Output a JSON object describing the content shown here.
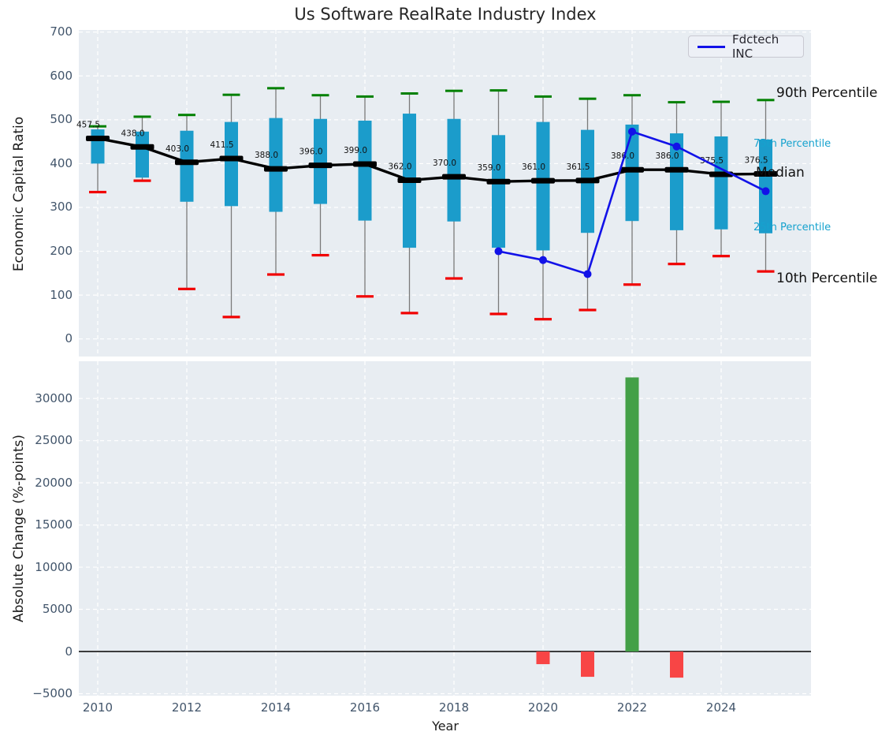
{
  "title": "Us Software RealRate Industry Index",
  "legend": {
    "label": "Fdctech INC",
    "position": "upper right",
    "line_color": "#1212e8"
  },
  "annotations": {
    "p90": "90th Percentile",
    "p75": "75th Percentile",
    "median": "Median",
    "p25": "25th Percentile",
    "p10": "10th Percentile"
  },
  "chart_data": [
    {
      "type": "boxplot-percentiles",
      "title": "Us Software RealRate Industry Index",
      "ylabel": "Economic Capital Ratio",
      "ylim": [
        -40,
        706
      ],
      "yticks": [
        0,
        100,
        200,
        300,
        400,
        500,
        600,
        700
      ],
      "grid": true,
      "years": [
        2010,
        2011,
        2012,
        2013,
        2014,
        2015,
        2016,
        2017,
        2018,
        2019,
        2020,
        2021,
        2022,
        2023,
        2024,
        2025
      ],
      "p90": [
        485,
        507,
        511,
        557,
        572,
        556,
        553,
        560,
        566,
        567,
        553,
        548,
        556,
        540,
        541,
        545
      ],
      "p75": [
        478,
        473,
        475,
        495,
        504,
        502,
        498,
        514,
        502,
        465,
        495,
        477,
        489,
        469,
        462,
        455
      ],
      "median": [
        457.5,
        438.0,
        403.0,
        411.5,
        388.0,
        396.0,
        399.0,
        362.0,
        370.0,
        359.0,
        361.0,
        361.5,
        386.0,
        386.0,
        375.5,
        376.5
      ],
      "p25": [
        400,
        368,
        313,
        303,
        290,
        308,
        270,
        208,
        268,
        208,
        202,
        242,
        269,
        248,
        250,
        241
      ],
      "p10": [
        335,
        361,
        114,
        50,
        147,
        191,
        97,
        59,
        138,
        57,
        45,
        66,
        124,
        171,
        189,
        154
      ],
      "median_labels": [
        "457.5",
        "438.0",
        "403.0",
        "411.5",
        "388.0",
        "396.0",
        "399.0",
        "362.0",
        "370.0",
        "359.0",
        "361.0",
        "361.5",
        "386.0",
        "386.0",
        "375.5",
        "376.5"
      ],
      "company": {
        "name": "Fdctech INC",
        "x": [
          2019,
          2020,
          2021,
          2022,
          2023,
          2025
        ],
        "y": [
          200,
          180,
          148,
          473,
          439,
          337
        ]
      },
      "colors": {
        "box": "#1b9ccb",
        "whisker": "#7a7a7a",
        "p90_cap": "#008000",
        "p10_cap": "#f10000",
        "median": "#000000",
        "company": "#1212e8",
        "plot_bg": "#e8edf2",
        "grid": "#ffffff"
      }
    },
    {
      "type": "bar",
      "ylabel": "Absolute Change (%-points)",
      "xlabel": "Year",
      "ylim": [
        -5250,
        34400
      ],
      "yticks": [
        -5000,
        0,
        5000,
        10000,
        15000,
        20000,
        25000,
        30000
      ],
      "xticks": [
        2010,
        2012,
        2014,
        2016,
        2018,
        2020,
        2022,
        2024
      ],
      "grid": true,
      "bars": [
        {
          "year": 2020,
          "value": -1500
        },
        {
          "year": 2021,
          "value": -3000
        },
        {
          "year": 2022,
          "value": 32500
        },
        {
          "year": 2023,
          "value": -3100
        }
      ],
      "colors": {
        "positive": "#43a047",
        "negative": "#f84545",
        "zero_line": "#000000"
      }
    }
  ]
}
